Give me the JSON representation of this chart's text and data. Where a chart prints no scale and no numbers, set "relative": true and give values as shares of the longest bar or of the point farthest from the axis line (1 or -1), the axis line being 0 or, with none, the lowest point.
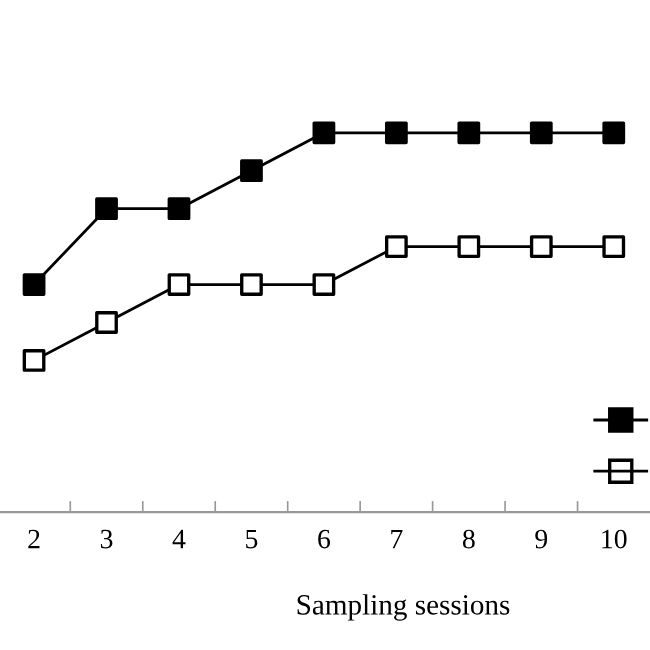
{
  "chart_data": {
    "type": "line",
    "xlabel": "Sampling sessions",
    "categories": [
      "2",
      "3",
      "4",
      "5",
      "6",
      "7",
      "8",
      "9",
      "10"
    ],
    "relative": true,
    "marker": "square",
    "grid": false,
    "series": [
      {
        "color": "#000000",
        "values": [
          0.6,
          0.8,
          0.8,
          0.9,
          1,
          1,
          1,
          1,
          1
        ]
      },
      {
        "color": "#000000",
        "colors": [
          "#ffffff",
          "#ffffff",
          "#ffffff",
          "#ffffff",
          "#ffffff",
          "#ffffff",
          "#ffffff",
          "#ffffff",
          "#ffffff"
        ],
        "values": [
          0.4,
          0.5,
          0.6,
          0.6,
          0.6,
          0.7,
          0.7,
          0.7,
          0.7
        ]
      }
    ]
  }
}
